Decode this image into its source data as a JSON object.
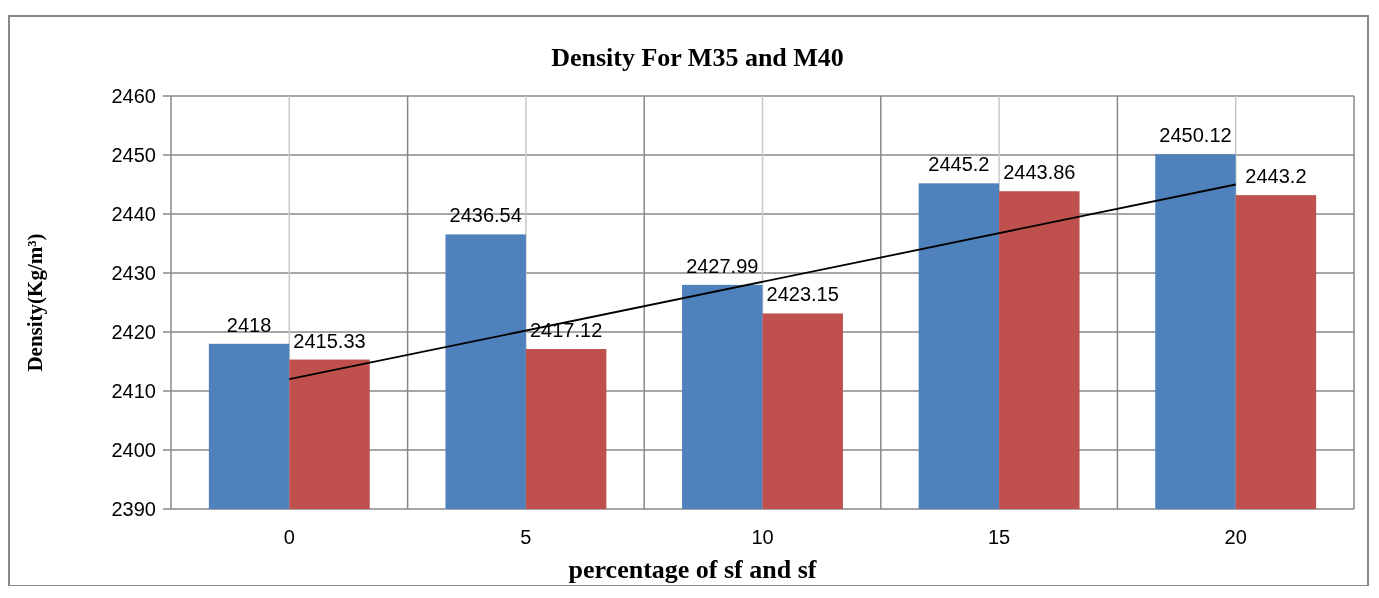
{
  "chart_data": {
    "type": "bar",
    "title": "Density For M35 and M40",
    "xlabel": "percentage of sf and sf",
    "ylabel": "Density(Kg/m³)",
    "categories": [
      "0",
      "5",
      "10",
      "15",
      "20"
    ],
    "series": [
      {
        "color": "#4f81bd",
        "values": [
          2418,
          2436.54,
          2427.99,
          2445.2,
          2450.12
        ],
        "value_labels": [
          "2418",
          "2436.54",
          "2427.99",
          "2445.2",
          "2450.12"
        ]
      },
      {
        "color": "#c0504d",
        "values": [
          2415.33,
          2417.12,
          2423.15,
          2443.86,
          2443.2
        ],
        "value_labels": [
          "2415.33",
          "2417.12",
          "2423.15",
          "2443.86",
          "2443.2"
        ]
      },
      {
        "type": "line",
        "color": "#000000",
        "x": [
          "0",
          "20"
        ],
        "values": [
          2412,
          2445
        ]
      }
    ],
    "ylim": [
      2390,
      2460
    ],
    "yticks": [
      2390,
      2400,
      2410,
      2420,
      2430,
      2440,
      2450,
      2460
    ],
    "grid": true,
    "marker": "none"
  }
}
